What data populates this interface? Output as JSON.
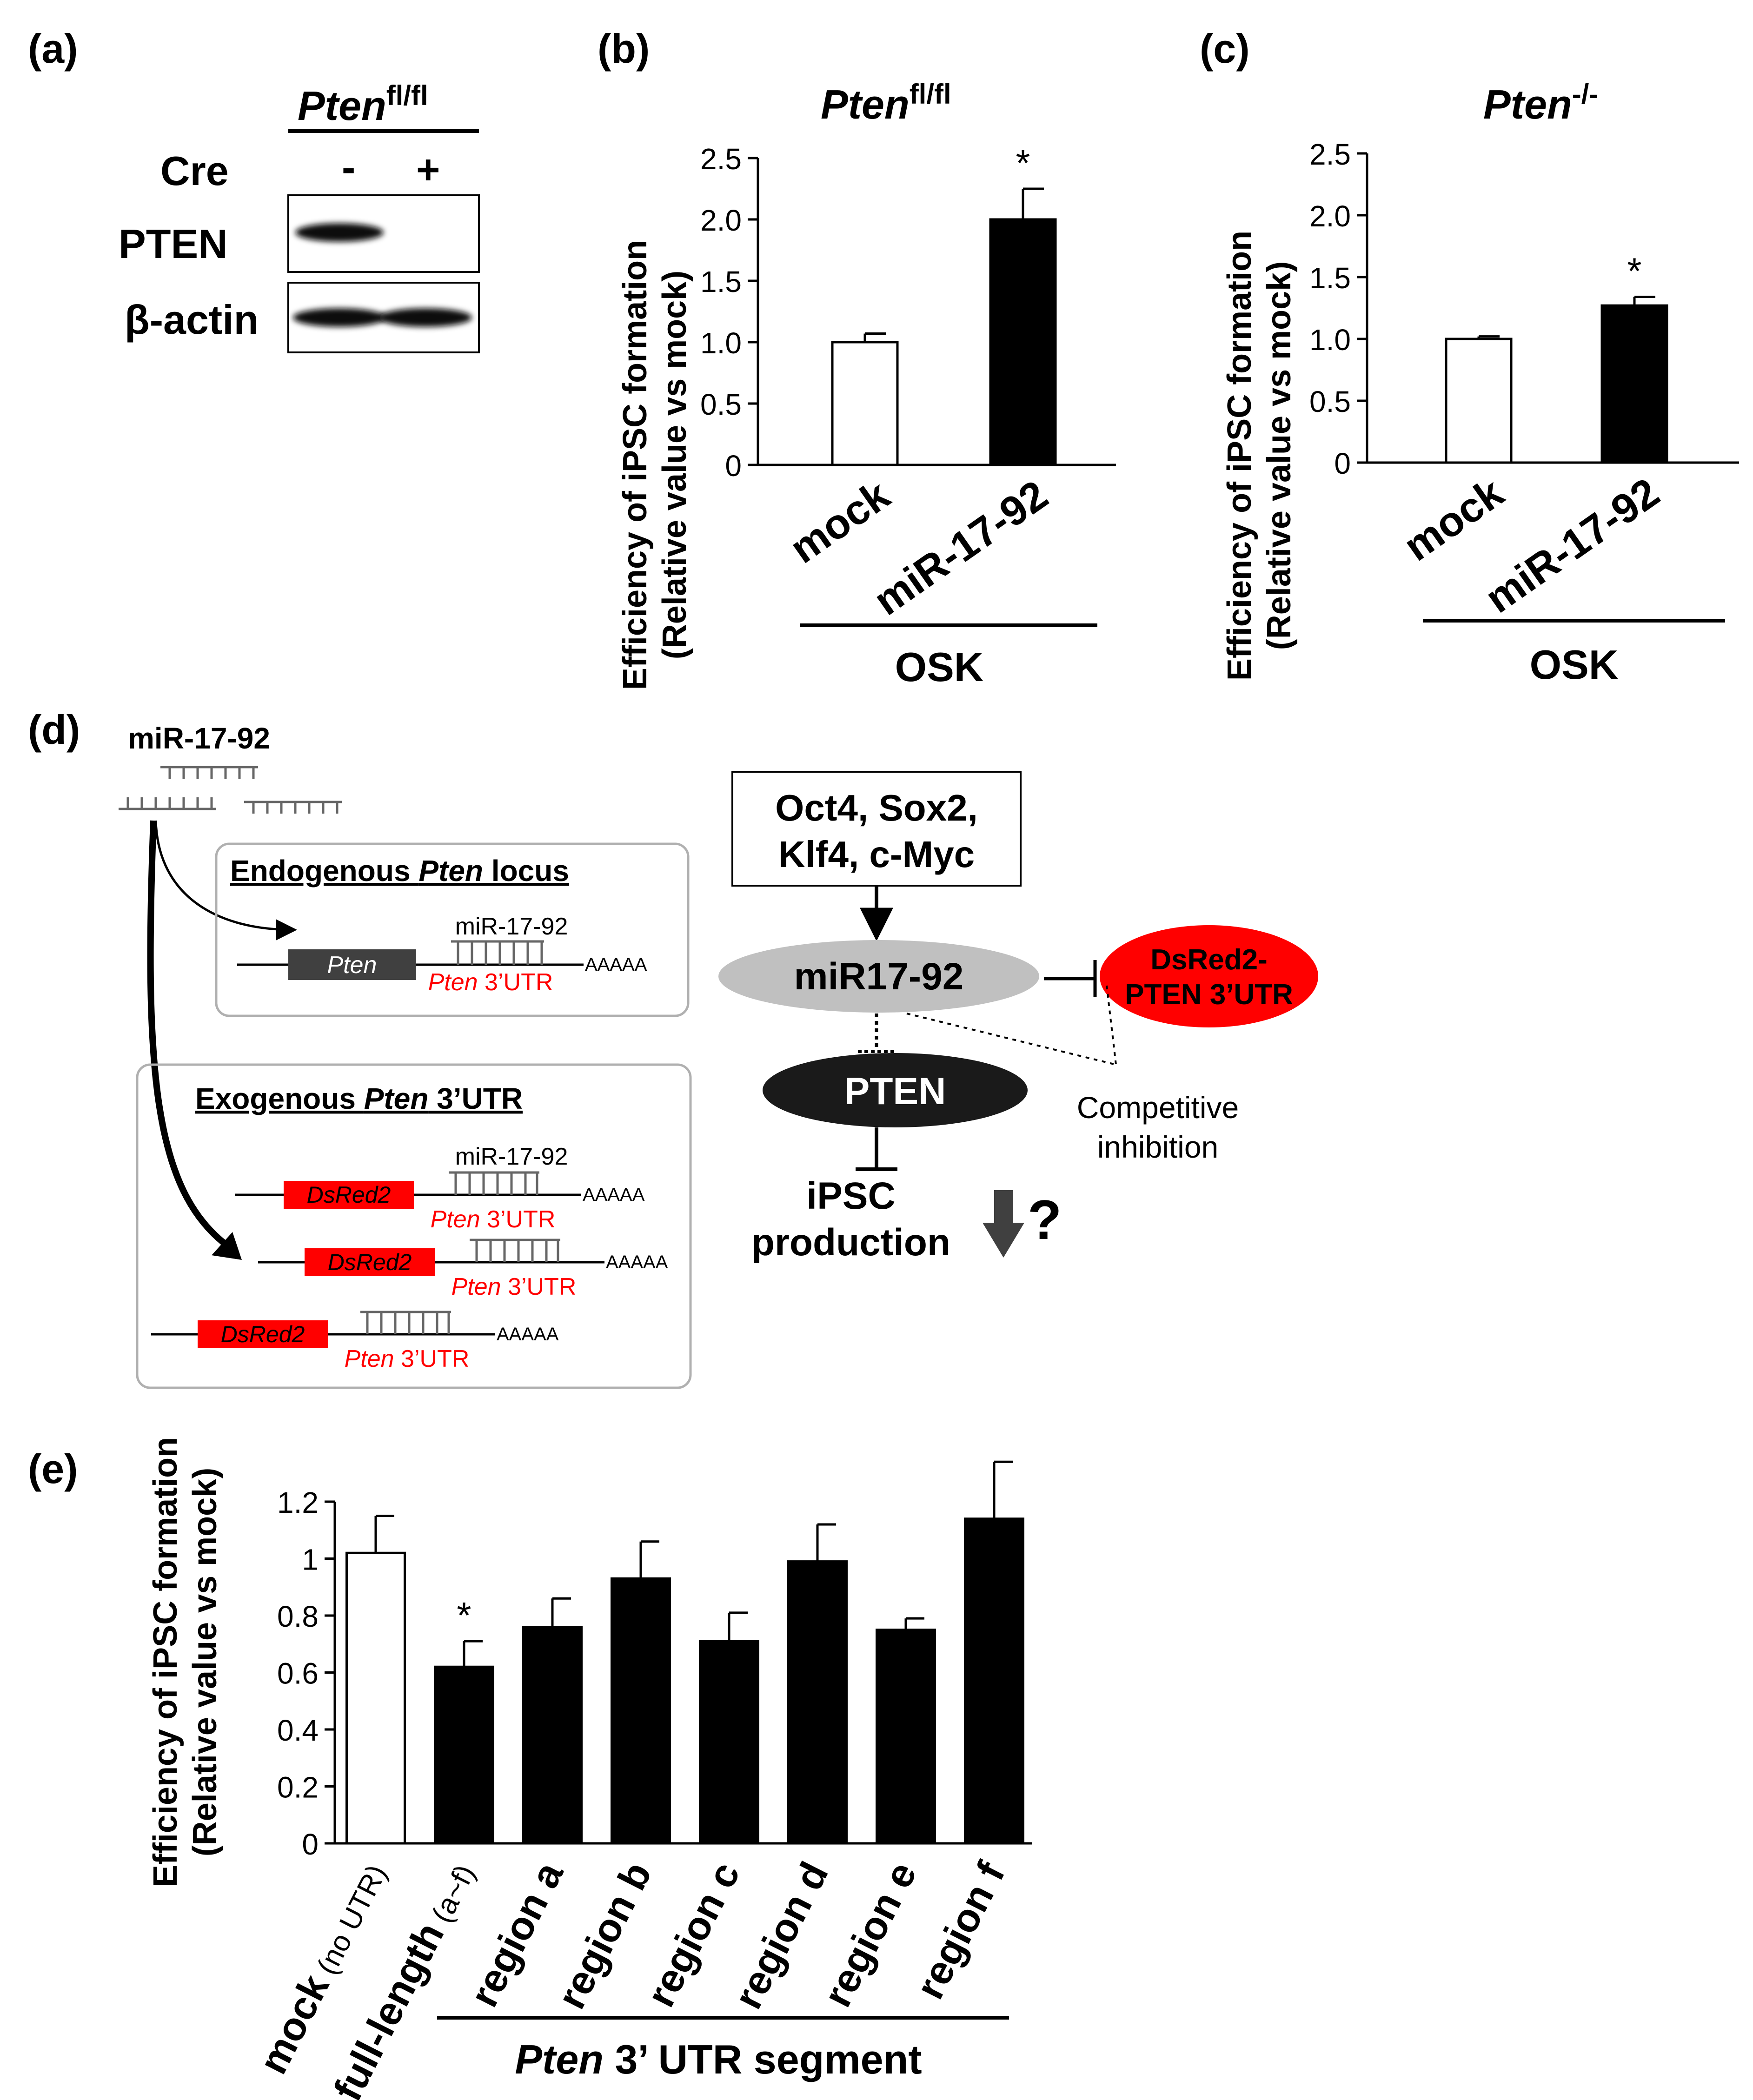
{
  "panels": {
    "a": {
      "label": "(a)",
      "genotype_base": "Pten",
      "genotype_sup": "fl/fl",
      "cre_label": "Cre",
      "lane_minus": "-",
      "lane_plus": "+",
      "row1": "PTEN",
      "row2": "β-actin"
    },
    "b": {
      "label": "(b)"
    },
    "c": {
      "label": "(c)"
    },
    "d": {
      "label": "(d)",
      "mirna_title": "miR-17-92",
      "endogenous_title_pre": "Endogenous ",
      "endogenous_title_gene": "Pten",
      "endogenous_title_post": " locus",
      "exogenous_title_pre": "Exogenous ",
      "exogenous_title_gene": "Pten",
      "exogenous_title_post": " 3’UTR",
      "gene_box": "Pten",
      "reporter_box": "DsRed2",
      "site_label": "miR-17-92",
      "utr_gene": "Pten",
      "utr_suffix": " 3’UTR",
      "polya": "AAAAA",
      "factors_line1": "Oct4, Sox2,",
      "factors_line2": "Klf4, c-Myc",
      "mir_node": "miR17-92",
      "reporter_line1": "DsRed2-",
      "reporter_line2": "PTEN 3’UTR",
      "pten_node": "PTEN",
      "competitive_line1": "Competitive",
      "competitive_line2": "inhibition",
      "ipsc_line1": "iPSC",
      "ipsc_line2": "production",
      "question": "?"
    },
    "e": {
      "label": "(e)",
      "group_label_gene": "Pten",
      "group_label_rest": " 3’ UTR segment"
    }
  },
  "colors": {
    "red": "#ff0000",
    "dark_gray": "#404040",
    "light_gray": "#c0c0c0",
    "box_gray": "#b0b0b0",
    "black": "#000000"
  },
  "chart_data": [
    {
      "type": "bar",
      "panel": "b",
      "title_gene": "Pten",
      "title_sup": "fl/fl",
      "categories": [
        "mock",
        "miR-17-92"
      ],
      "values": [
        1.0,
        2.0
      ],
      "errors": [
        0.07,
        0.25
      ],
      "significance": [
        "",
        "*"
      ],
      "ylabel_line1": "Efficiency of iPSC formation",
      "ylabel_line2": "(Relative value vs mock)",
      "ylim": [
        0,
        2.5
      ],
      "yticks": [
        "0",
        "0.5",
        "1.0",
        "1.5",
        "2.0",
        "2.5"
      ],
      "group_label": "OSK"
    },
    {
      "type": "bar",
      "panel": "c",
      "title_gene": "Pten",
      "title_sup": "-/-",
      "categories": [
        "mock",
        "miR-17-92"
      ],
      "values": [
        1.0,
        1.27
      ],
      "errors": [
        0.02,
        0.07
      ],
      "significance": [
        "",
        "*"
      ],
      "ylabel_line1": "Efficiency of iPSC formation",
      "ylabel_line2": "(Relative value vs mock)",
      "ylim": [
        0,
        2.5
      ],
      "yticks": [
        "0",
        "0.5",
        "1.0",
        "1.5",
        "2.0",
        "2.5"
      ],
      "group_label": "OSK"
    },
    {
      "type": "bar",
      "panel": "e",
      "categories": [
        {
          "main": "mock",
          "sub": " (no UTR)"
        },
        {
          "main": "full-length",
          "sub": " (a~f)"
        },
        {
          "main": "region a",
          "sub": ""
        },
        {
          "main": "region b",
          "sub": ""
        },
        {
          "main": "region c",
          "sub": ""
        },
        {
          "main": "region d",
          "sub": ""
        },
        {
          "main": "region e",
          "sub": ""
        },
        {
          "main": "region f",
          "sub": ""
        }
      ],
      "values": [
        1.02,
        0.62,
        0.76,
        0.93,
        0.71,
        0.99,
        0.75,
        1.14
      ],
      "errors": [
        0.13,
        0.09,
        0.1,
        0.13,
        0.1,
        0.13,
        0.04,
        0.2
      ],
      "significance": [
        "",
        "*",
        "",
        "",
        "",
        "",
        "",
        ""
      ],
      "ylabel_line1": "Efficiency of iPSC formation",
      "ylabel_line2": "(Relative value vs mock)",
      "ylim": [
        0,
        1.2
      ],
      "yticks": [
        "0",
        "0.2",
        "0.4",
        "0.6",
        "0.8",
        "1",
        "1.2"
      ]
    }
  ]
}
